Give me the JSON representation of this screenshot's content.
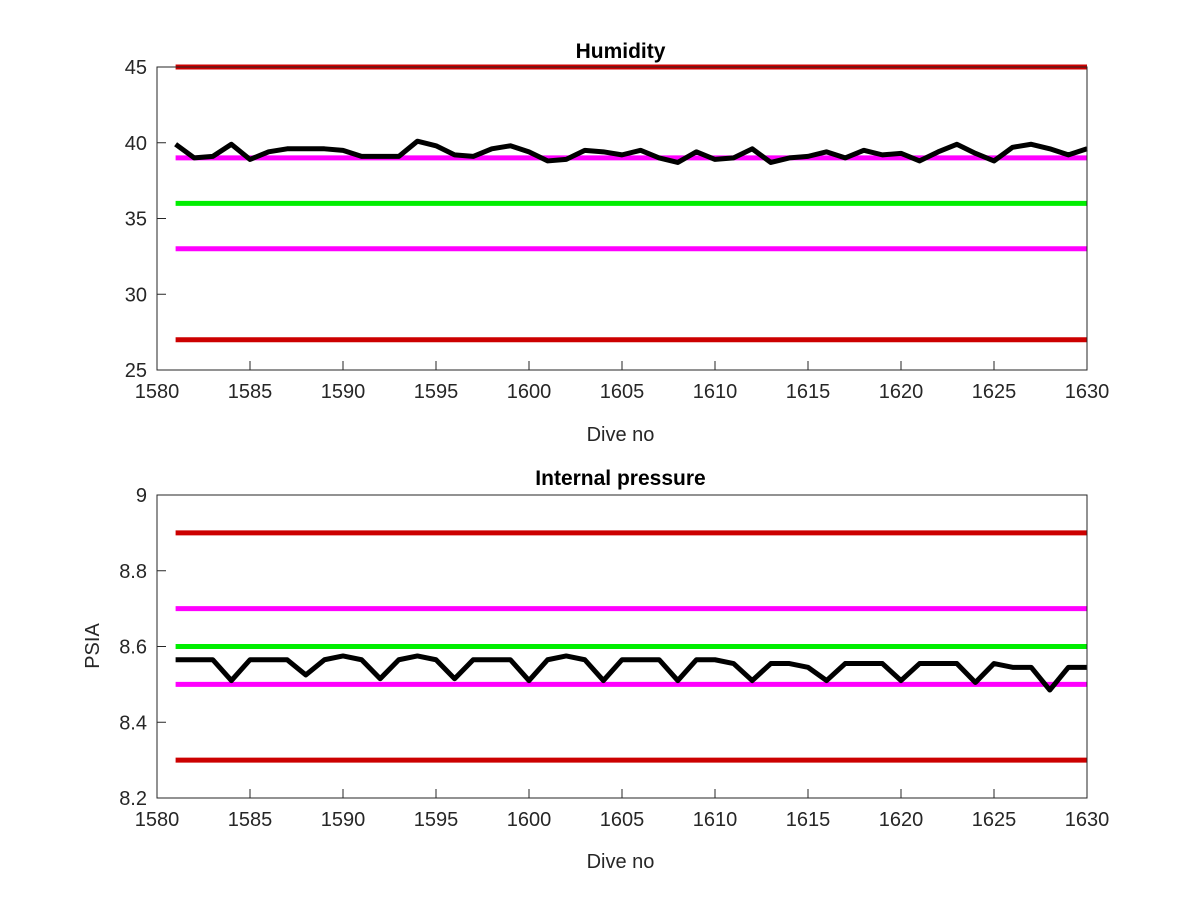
{
  "chart_data": [
    {
      "type": "line",
      "title": "Humidity",
      "xlabel": "Dive no",
      "ylabel": "",
      "xlim": [
        1580,
        1630
      ],
      "ylim": [
        25,
        45
      ],
      "xticks": [
        "1580",
        "1585",
        "1590",
        "1595",
        "1600",
        "1605",
        "1610",
        "1615",
        "1620",
        "1625",
        "1630"
      ],
      "yticks": [
        "25",
        "30",
        "35",
        "40",
        "45"
      ],
      "grid": false,
      "series": [
        {
          "color": "#000000",
          "x": [
            1581,
            1582,
            1583,
            1584,
            1585,
            1586,
            1587,
            1588,
            1589,
            1590,
            1591,
            1592,
            1593,
            1594,
            1595,
            1596,
            1597,
            1598,
            1599,
            1600,
            1601,
            1602,
            1603,
            1604,
            1605,
            1606,
            1607,
            1608,
            1609,
            1610,
            1611,
            1612,
            1613,
            1614,
            1615,
            1616,
            1617,
            1618,
            1619,
            1620,
            1621,
            1622,
            1623,
            1624,
            1625,
            1626,
            1627,
            1628,
            1629,
            1630
          ],
          "y": [
            39.9,
            39.0,
            39.1,
            39.9,
            38.9,
            39.4,
            39.6,
            39.6,
            39.6,
            39.5,
            39.1,
            39.1,
            39.1,
            40.1,
            39.8,
            39.2,
            39.1,
            39.6,
            39.8,
            39.4,
            38.8,
            38.9,
            39.5,
            39.4,
            39.2,
            39.5,
            39.0,
            38.7,
            39.4,
            38.9,
            39.0,
            39.6,
            38.7,
            39.0,
            39.1,
            39.4,
            39.0,
            39.5,
            39.2,
            39.3,
            38.8,
            39.4,
            39.9,
            39.3,
            38.8,
            39.7,
            39.9,
            39.6,
            39.2,
            39.6
          ]
        },
        {
          "color": "#cc0000",
          "x": [
            1581,
            1630
          ],
          "y": [
            45,
            45
          ]
        },
        {
          "color": "#cc0000",
          "x": [
            1581,
            1630
          ],
          "y": [
            27,
            27
          ]
        },
        {
          "color": "#ff00ff",
          "x": [
            1581,
            1630
          ],
          "y": [
            39,
            39
          ]
        },
        {
          "color": "#ff00ff",
          "x": [
            1581,
            1630
          ],
          "y": [
            33,
            33
          ]
        },
        {
          "color": "#00ee00",
          "x": [
            1581,
            1630
          ],
          "y": [
            36,
            36
          ]
        }
      ]
    },
    {
      "type": "line",
      "title": "Internal pressure",
      "xlabel": "Dive no",
      "ylabel": "PSIA",
      "xlim": [
        1580,
        1630
      ],
      "ylim": [
        8.2,
        9.0
      ],
      "xticks": [
        "1580",
        "1585",
        "1590",
        "1595",
        "1600",
        "1605",
        "1610",
        "1615",
        "1620",
        "1625",
        "1630"
      ],
      "yticks": [
        "8.2",
        "8.4",
        "8.6",
        "8.8",
        "9"
      ],
      "grid": false,
      "series": [
        {
          "color": "#000000",
          "x": [
            1581,
            1582,
            1583,
            1584,
            1585,
            1586,
            1587,
            1588,
            1589,
            1590,
            1591,
            1592,
            1593,
            1594,
            1595,
            1596,
            1597,
            1598,
            1599,
            1600,
            1601,
            1602,
            1603,
            1604,
            1605,
            1606,
            1607,
            1608,
            1609,
            1610,
            1611,
            1612,
            1613,
            1614,
            1615,
            1616,
            1617,
            1618,
            1619,
            1620,
            1621,
            1622,
            1623,
            1624,
            1625,
            1626,
            1627,
            1628,
            1629,
            1630
          ],
          "y": [
            8.565,
            8.565,
            8.565,
            8.51,
            8.565,
            8.565,
            8.565,
            8.525,
            8.565,
            8.575,
            8.565,
            8.515,
            8.565,
            8.575,
            8.565,
            8.515,
            8.565,
            8.565,
            8.565,
            8.51,
            8.565,
            8.575,
            8.565,
            8.51,
            8.565,
            8.565,
            8.565,
            8.51,
            8.565,
            8.565,
            8.555,
            8.51,
            8.555,
            8.555,
            8.545,
            8.51,
            8.555,
            8.555,
            8.555,
            8.51,
            8.555,
            8.555,
            8.555,
            8.505,
            8.555,
            8.545,
            8.545,
            8.485,
            8.545,
            8.545
          ]
        },
        {
          "color": "#cc0000",
          "x": [
            1581,
            1630
          ],
          "y": [
            8.9,
            8.9
          ]
        },
        {
          "color": "#cc0000",
          "x": [
            1581,
            1630
          ],
          "y": [
            8.3,
            8.3
          ]
        },
        {
          "color": "#ff00ff",
          "x": [
            1581,
            1630
          ],
          "y": [
            8.7,
            8.7
          ]
        },
        {
          "color": "#ff00ff",
          "x": [
            1581,
            1630
          ],
          "y": [
            8.5,
            8.5
          ]
        },
        {
          "color": "#00ee00",
          "x": [
            1581,
            1630
          ],
          "y": [
            8.6,
            8.6
          ]
        }
      ]
    }
  ]
}
